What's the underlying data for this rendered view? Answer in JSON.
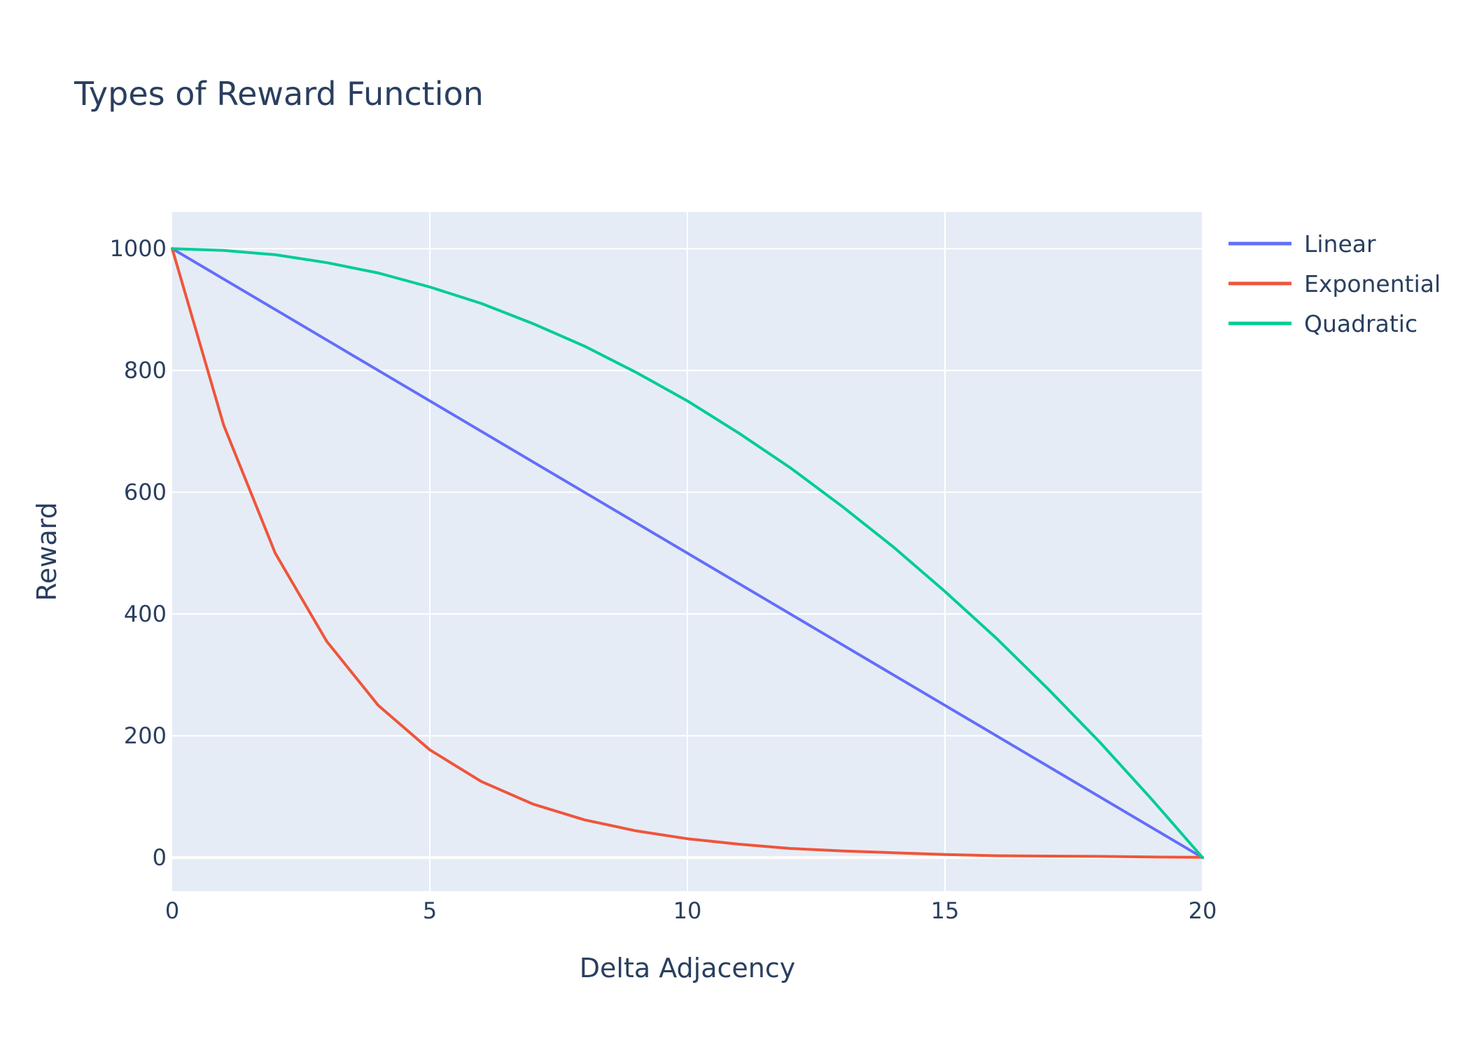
{
  "chart_data": {
    "type": "line",
    "title": "Types of Reward Function",
    "xlabel": "Delta Adjacency",
    "ylabel": "Reward",
    "xlim": [
      0,
      20
    ],
    "ylim": [
      -55,
      1060
    ],
    "x_ticks": [
      "0",
      "5",
      "10",
      "15",
      "20"
    ],
    "y_ticks": [
      "0",
      "200",
      "400",
      "600",
      "800",
      "1000"
    ],
    "grid": true,
    "legend_position": "top-right",
    "x": [
      0,
      1,
      2,
      3,
      4,
      5,
      6,
      7,
      8,
      9,
      10,
      11,
      12,
      13,
      14,
      15,
      16,
      17,
      18,
      19,
      20
    ],
    "series": [
      {
        "name": "Linear",
        "color": "#636efa",
        "values": [
          1000,
          950,
          900,
          850,
          800,
          750,
          700,
          650,
          600,
          550,
          500,
          450,
          400,
          350,
          300,
          250,
          200,
          150,
          100,
          50,
          0
        ]
      },
      {
        "name": "Exponential",
        "color": "#ef553b",
        "values": [
          1000,
          710,
          500,
          355,
          250,
          177,
          125,
          88,
          62,
          44,
          31,
          22,
          15,
          11,
          8,
          5,
          3,
          2.5,
          2,
          1,
          0.5
        ]
      },
      {
        "name": "Quadratic",
        "color": "#00cc96",
        "values": [
          1000,
          997,
          990,
          977,
          960,
          937,
          910,
          877,
          840,
          797,
          750,
          697,
          640,
          577,
          510,
          437,
          360,
          277,
          190,
          97,
          0
        ]
      }
    ]
  }
}
